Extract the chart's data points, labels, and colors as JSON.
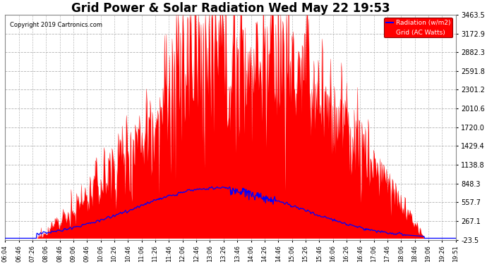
{
  "title": "Grid Power & Solar Radiation Wed May 22 19:53",
  "copyright": "Copyright 2019 Cartronics.com",
  "legend_labels": [
    "Radiation (w/m2)",
    "Grid (AC Watts)"
  ],
  "yticks": [
    -23.5,
    267.1,
    557.7,
    848.3,
    1138.8,
    1429.4,
    1720.0,
    2010.6,
    2301.2,
    2591.8,
    2882.3,
    3172.9,
    3463.5
  ],
  "ymin": -23.5,
  "ymax": 3463.5,
  "plot_bg_color": "#ffffff",
  "grid_color": "#aaaaaa",
  "title_fontsize": 12,
  "red_color": "#ff0000",
  "blue_color": "#0000ff",
  "time_labels": [
    "06:04",
    "06:46",
    "07:26",
    "08:06",
    "08:46",
    "09:06",
    "09:46",
    "10:06",
    "10:26",
    "10:46",
    "11:06",
    "11:26",
    "11:46",
    "12:06",
    "12:46",
    "13:06",
    "13:26",
    "13:46",
    "14:06",
    "14:26",
    "14:46",
    "15:06",
    "15:26",
    "15:46",
    "16:06",
    "16:26",
    "16:46",
    "17:06",
    "17:46",
    "18:06",
    "18:46",
    "19:06",
    "19:26",
    "19:51"
  ]
}
